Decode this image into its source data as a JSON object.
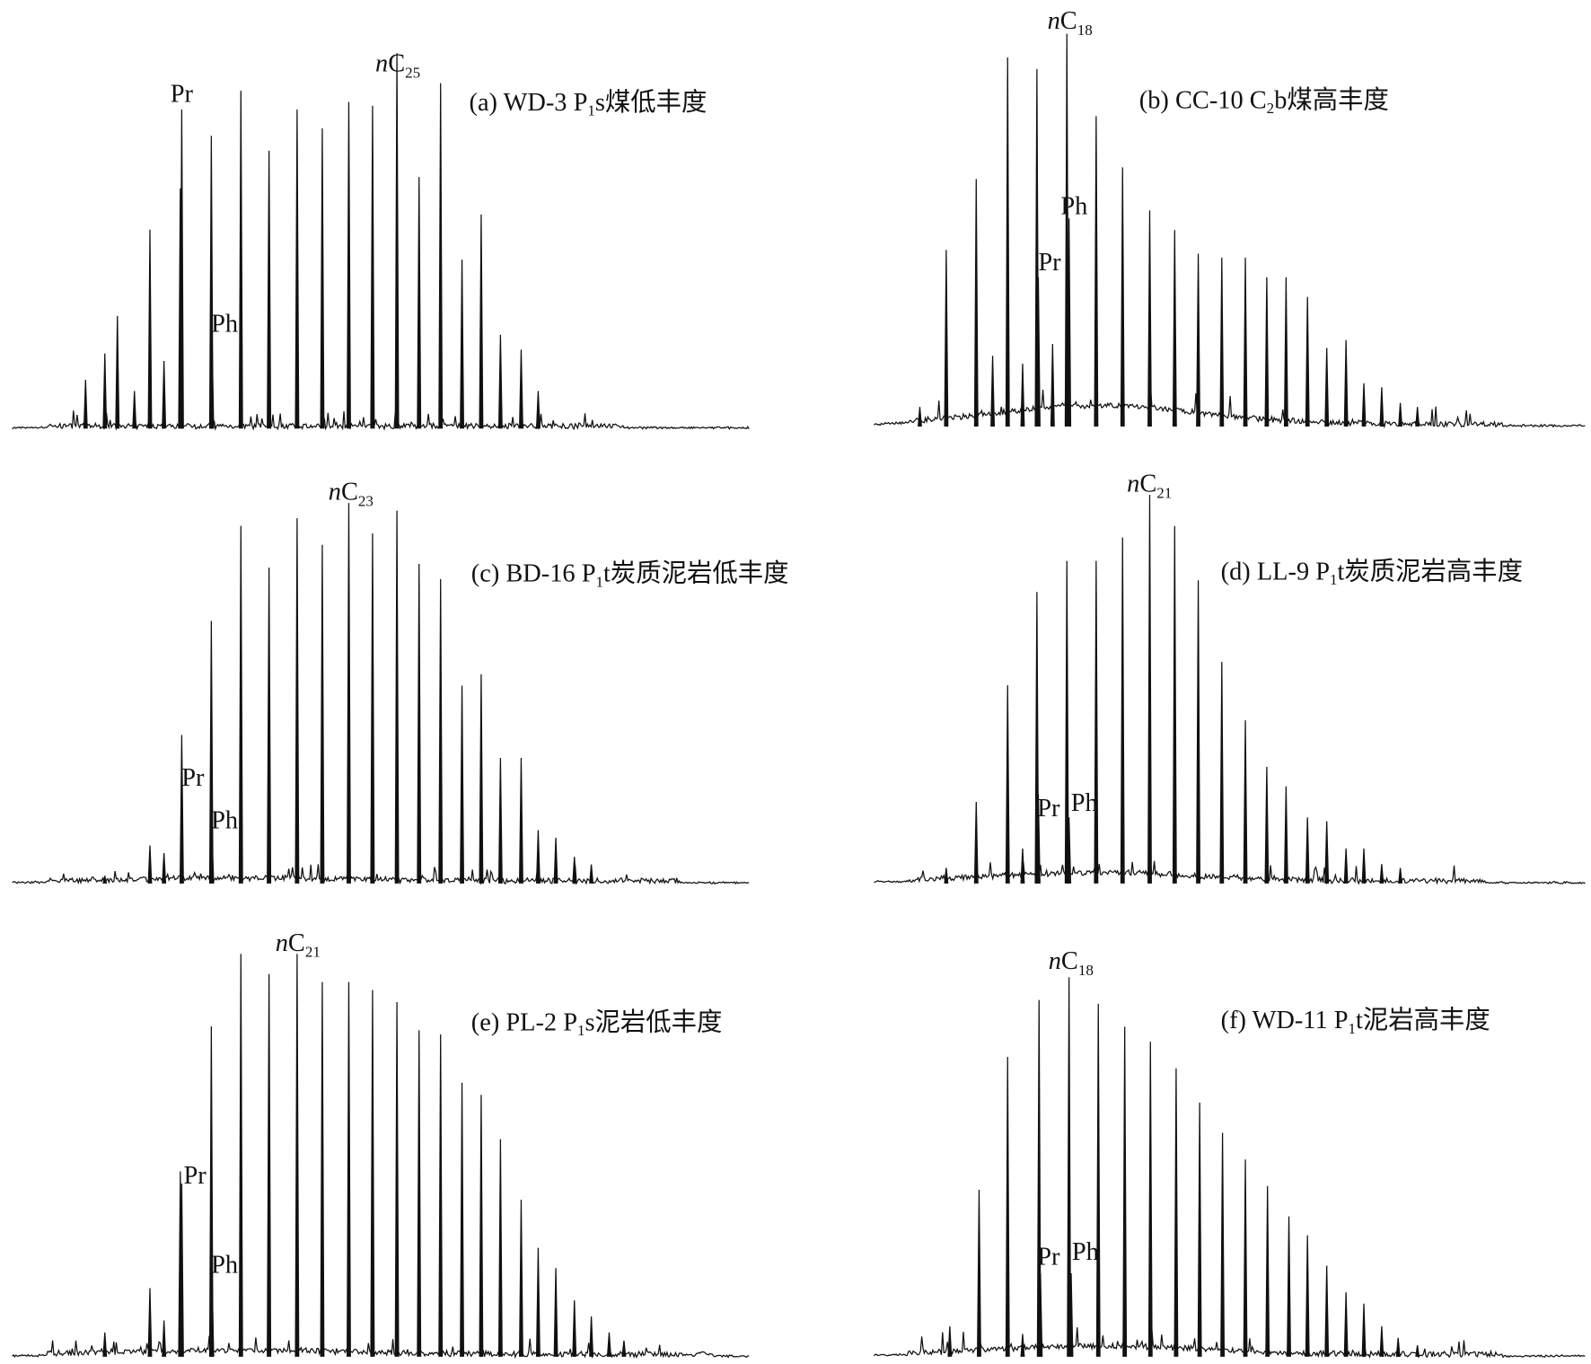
{
  "chart_data": [
    {
      "type": "line",
      "panel": "a",
      "title": {
        "prefix": "(a) WD-3 P",
        "sub": "1",
        "suffix": "s煤低丰度"
      },
      "xlabel": "",
      "ylabel": "",
      "xlim": [
        0,
        100
      ],
      "ylim": [
        0,
        100
      ],
      "grid": false,
      "peaks": [
        [
          10.2,
          13
        ],
        [
          12.8,
          20
        ],
        [
          14.5,
          30
        ],
        [
          16.8,
          10
        ],
        [
          18.9,
          53
        ],
        [
          20.8,
          18
        ],
        [
          23.0,
          64
        ],
        [
          23.2,
          85
        ],
        [
          27.2,
          78
        ],
        [
          27.3,
          24
        ],
        [
          31.2,
          90
        ],
        [
          35.0,
          74
        ],
        [
          38.8,
          85
        ],
        [
          42.2,
          80
        ],
        [
          45.8,
          87
        ],
        [
          49.0,
          86
        ],
        [
          52.3,
          100
        ],
        [
          55.3,
          67
        ],
        [
          58.2,
          92
        ],
        [
          61.1,
          45
        ],
        [
          63.7,
          57
        ],
        [
          66.3,
          25
        ],
        [
          69.1,
          21
        ],
        [
          71.4,
          10
        ]
      ],
      "annotations": [
        {
          "text": "Pr",
          "sub": "",
          "rt": 23.2
        },
        {
          "text": "Ph",
          "sub": "",
          "rt": 27.3
        },
        {
          "text": "nC",
          "sub": "25",
          "rt": 52.3
        }
      ]
    },
    {
      "type": "line",
      "panel": "b",
      "title": {
        "prefix": "(b) CC-10 C",
        "sub": "2",
        "suffix": "b煤高丰度"
      },
      "xlabel": "",
      "ylabel": "",
      "xlim": [
        0,
        100
      ],
      "ylim": [
        0,
        100
      ],
      "grid": false,
      "peaks": [
        [
          6.7,
          5
        ],
        [
          10.4,
          45
        ],
        [
          14.6,
          63
        ],
        [
          16.9,
          18
        ],
        [
          19.0,
          94
        ],
        [
          21.1,
          16
        ],
        [
          23.1,
          91
        ],
        [
          23.3,
          38
        ],
        [
          25.3,
          21
        ],
        [
          27.3,
          100
        ],
        [
          27.6,
          53
        ],
        [
          31.4,
          79
        ],
        [
          35.1,
          66
        ],
        [
          38.9,
          55
        ],
        [
          42.4,
          50
        ],
        [
          45.7,
          44
        ],
        [
          49.0,
          43
        ],
        [
          52.3,
          43
        ],
        [
          55.3,
          38
        ],
        [
          58.0,
          38
        ],
        [
          61.0,
          33
        ],
        [
          63.7,
          20
        ],
        [
          66.4,
          22
        ],
        [
          68.9,
          11
        ],
        [
          71.4,
          10
        ],
        [
          74.0,
          6
        ],
        [
          76.4,
          5
        ]
      ],
      "annotations": [
        {
          "text": "Pr",
          "sub": "",
          "rt": 23.3
        },
        {
          "text": "Ph",
          "sub": "",
          "rt": 27.6
        },
        {
          "text": "nC",
          "sub": "18",
          "rt": 27.3
        }
      ]
    },
    {
      "type": "line",
      "panel": "c",
      "title": {
        "prefix": "(c) BD-16 P",
        "sub": "1",
        "suffix": "t炭质泥岩低丰度"
      },
      "xlabel": "",
      "ylabel": "",
      "xlim": [
        0,
        100
      ],
      "ylim": [
        0,
        100
      ],
      "grid": false,
      "peaks": [
        [
          12.8,
          2
        ],
        [
          18.9,
          10
        ],
        [
          20.8,
          8
        ],
        [
          23.2,
          39
        ],
        [
          27.2,
          69
        ],
        [
          27.3,
          12
        ],
        [
          31.2,
          94
        ],
        [
          35.0,
          83
        ],
        [
          38.8,
          96
        ],
        [
          42.2,
          89
        ],
        [
          45.8,
          100
        ],
        [
          49.0,
          92
        ],
        [
          52.3,
          98
        ],
        [
          55.3,
          84
        ],
        [
          58.2,
          80
        ],
        [
          61.1,
          52
        ],
        [
          63.7,
          55
        ],
        [
          66.3,
          33
        ],
        [
          69.1,
          33
        ],
        [
          71.4,
          14
        ],
        [
          73.8,
          12
        ],
        [
          76.3,
          7
        ],
        [
          78.6,
          5
        ]
      ],
      "annotations": [
        {
          "text": "Pr",
          "sub": "",
          "rt": 23.2
        },
        {
          "text": "Ph",
          "sub": "",
          "rt": 27.3
        },
        {
          "text": "nC",
          "sub": "23",
          "rt": 45.8
        }
      ]
    },
    {
      "type": "line",
      "panel": "d",
      "title": {
        "prefix": "(d) LL-9 P",
        "sub": "1",
        "suffix": "t炭质泥岩高丰度"
      },
      "xlabel": "",
      "ylabel": "",
      "xlim": [
        0,
        100
      ],
      "ylim": [
        0,
        100
      ],
      "grid": false,
      "peaks": [
        [
          10.4,
          4
        ],
        [
          14.6,
          21
        ],
        [
          19.0,
          51
        ],
        [
          21.1,
          9
        ],
        [
          23.1,
          75
        ],
        [
          23.3,
          23
        ],
        [
          27.3,
          83
        ],
        [
          27.6,
          17
        ],
        [
          31.4,
          83
        ],
        [
          35.1,
          89
        ],
        [
          38.9,
          100
        ],
        [
          42.4,
          92
        ],
        [
          45.7,
          78
        ],
        [
          49.0,
          57
        ],
        [
          52.3,
          42
        ],
        [
          55.3,
          30
        ],
        [
          58.0,
          25
        ],
        [
          61.0,
          17
        ],
        [
          63.7,
          16
        ],
        [
          66.4,
          9
        ],
        [
          68.9,
          9
        ],
        [
          71.4,
          5
        ],
        [
          74.0,
          4
        ]
      ],
      "annotations": [
        {
          "text": "Pr",
          "sub": "",
          "rt": 23.3
        },
        {
          "text": "Ph",
          "sub": "",
          "rt": 27.6
        },
        {
          "text": "nC",
          "sub": "21",
          "rt": 38.9
        }
      ]
    },
    {
      "type": "line",
      "panel": "e",
      "title": {
        "prefix": "(e) PL-2 P",
        "sub": "1",
        "suffix": "s泥岩低丰度"
      },
      "xlabel": "",
      "ylabel": "",
      "xlim": [
        0,
        100
      ],
      "ylim": [
        0,
        100
      ],
      "grid": false,
      "peaks": [
        [
          12.8,
          6
        ],
        [
          18.9,
          17
        ],
        [
          20.8,
          9
        ],
        [
          23.0,
          46
        ],
        [
          23.2,
          43
        ],
        [
          27.2,
          82
        ],
        [
          27.3,
          20
        ],
        [
          31.2,
          100
        ],
        [
          35.0,
          95
        ],
        [
          38.8,
          100
        ],
        [
          42.2,
          93
        ],
        [
          45.8,
          93
        ],
        [
          49.0,
          91
        ],
        [
          52.3,
          88
        ],
        [
          55.3,
          81
        ],
        [
          58.2,
          80
        ],
        [
          61.1,
          68
        ],
        [
          63.7,
          65
        ],
        [
          66.3,
          54
        ],
        [
          69.1,
          39
        ],
        [
          71.4,
          27
        ],
        [
          73.8,
          22
        ],
        [
          76.3,
          14
        ],
        [
          78.6,
          10
        ],
        [
          81.0,
          6
        ],
        [
          83.0,
          4
        ]
      ],
      "annotations": [
        {
          "text": "Pr",
          "sub": "",
          "rt": 23.0
        },
        {
          "text": "Ph",
          "sub": "",
          "rt": 27.3
        },
        {
          "text": "nC",
          "sub": "21",
          "rt": 38.8
        }
      ]
    },
    {
      "type": "line",
      "panel": "f",
      "title": {
        "prefix": "(f) WD-11 P",
        "sub": "1",
        "suffix": "t泥岩高丰度"
      },
      "xlabel": "",
      "ylabel": "",
      "xlim": [
        0,
        100
      ],
      "ylim": [
        0,
        100
      ],
      "grid": false,
      "peaks": [
        [
          10.9,
          8
        ],
        [
          15.0,
          44
        ],
        [
          19.0,
          79
        ],
        [
          21.1,
          6
        ],
        [
          23.4,
          94
        ],
        [
          23.6,
          22
        ],
        [
          27.6,
          100
        ],
        [
          27.9,
          22
        ],
        [
          31.7,
          93
        ],
        [
          35.4,
          87
        ],
        [
          39.0,
          83
        ],
        [
          42.6,
          76
        ],
        [
          45.9,
          67
        ],
        [
          49.1,
          59
        ],
        [
          52.3,
          52
        ],
        [
          55.4,
          45
        ],
        [
          58.4,
          37
        ],
        [
          61.0,
          32
        ],
        [
          63.7,
          24
        ],
        [
          66.4,
          17
        ],
        [
          68.9,
          14
        ],
        [
          71.4,
          8
        ],
        [
          73.7,
          5
        ],
        [
          76.4,
          3
        ]
      ],
      "annotations": [
        {
          "text": "Pr",
          "sub": "",
          "rt": 23.6
        },
        {
          "text": "Ph",
          "sub": "",
          "rt": 27.9
        },
        {
          "text": "nC",
          "sub": "18",
          "rt": 27.6
        }
      ]
    }
  ]
}
